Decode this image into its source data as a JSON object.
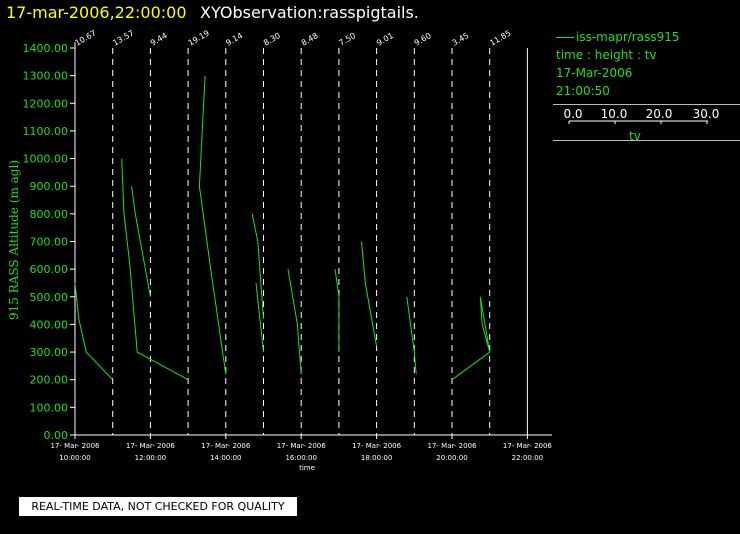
{
  "header": {
    "datetime": "17-mar-2006,22:00:00",
    "observation": "XYObservation:rasspigtails."
  },
  "legend": {
    "series": "iss-mapr/rass915",
    "subtitle": "time : height : tv",
    "date": "17-Mar-2006",
    "time": "21:00:50",
    "scale_ticks": [
      "0.0",
      "10.0",
      "20.0",
      "30.0"
    ],
    "scale_label": "tv"
  },
  "qc_note": "REAL-TIME DATA, NOT CHECKED FOR QUALITY",
  "colors": {
    "series": "#22dd22",
    "title_time": "#ffff00",
    "axis": "#ffffff"
  },
  "chart_data": {
    "type": "line",
    "title": "XYObservation:rasspigtails.",
    "ylabel": "915 RASS Altitude (m agl)",
    "xlabel": "time",
    "ylim": [
      0,
      1400
    ],
    "xlim": [
      9,
      22.25
    ],
    "yticks": [
      "0.00",
      "100.00",
      "200.00",
      "300.00",
      "400.00",
      "500.00",
      "600.00",
      "700.00",
      "800.00",
      "900.00",
      "1000.00",
      "1100.00",
      "1200.00",
      "1300.00",
      "1400.00"
    ],
    "xticks": [
      {
        "x": 10,
        "date": "17- Mar- 2006",
        "time": "10:00:00"
      },
      {
        "x": 12,
        "date": "17- Mar- 2006",
        "time": "12:00:00"
      },
      {
        "x": 14,
        "date": "17- Mar- 2006",
        "time": "14:00:00"
      },
      {
        "x": 16,
        "date": "17- Mar- 2006",
        "time": "16:00:00"
      },
      {
        "x": 18,
        "date": "17- Mar- 2006",
        "time": "18:00:00"
      },
      {
        "x": 20,
        "date": "17- Mar- 2006",
        "time": "20:00:00"
      },
      {
        "x": 22,
        "date": "17- Mar- 2006",
        "time": "22:00:00"
      }
    ],
    "profile_markers": [
      {
        "x": 10.0,
        "label": "10.67"
      },
      {
        "x": 11.0,
        "label": "13.57"
      },
      {
        "x": 12.0,
        "label": "9.44"
      },
      {
        "x": 13.0,
        "label": "19.19"
      },
      {
        "x": 14.0,
        "label": "9.14"
      },
      {
        "x": 15.0,
        "label": "8.30"
      },
      {
        "x": 16.0,
        "label": "8.48"
      },
      {
        "x": 17.0,
        "label": "7.50"
      },
      {
        "x": 18.0,
        "label": "9.01"
      },
      {
        "x": 19.0,
        "label": "9.60"
      },
      {
        "x": 20.0,
        "label": "3.45"
      },
      {
        "x": 21.0,
        "label": "11.85"
      }
    ],
    "grid": "vertical dashed at profile times",
    "series": [
      {
        "name": "iss-mapr/rass915",
        "points": [
          [
            10.0,
            550
          ],
          [
            10.1,
            420
          ],
          [
            10.3,
            300
          ],
          [
            11.0,
            200
          ]
        ]
      },
      {
        "name": "iss-mapr/rass915",
        "points": [
          [
            11.24,
            1000
          ],
          [
            11.3,
            800
          ],
          [
            11.45,
            620
          ],
          [
            11.65,
            300
          ],
          [
            13.0,
            200
          ]
        ]
      },
      {
        "name": "iss-mapr/rass915",
        "points": [
          [
            11.5,
            900
          ],
          [
            11.6,
            800
          ],
          [
            11.8,
            650
          ],
          [
            12.0,
            500
          ]
        ]
      },
      {
        "name": "iss-mapr/rass915",
        "points": [
          [
            13.45,
            1300
          ],
          [
            13.3,
            900
          ],
          [
            13.6,
            600
          ],
          [
            14.0,
            220
          ]
        ]
      },
      {
        "name": "iss-mapr/rass915",
        "points": [
          [
            14.7,
            800
          ],
          [
            14.85,
            700
          ],
          [
            15.0,
            420
          ]
        ]
      },
      {
        "name": "iss-mapr/rass915",
        "points": [
          [
            14.8,
            550
          ],
          [
            15.0,
            300
          ]
        ]
      },
      {
        "name": "iss-mapr/rass915",
        "points": [
          [
            15.65,
            600
          ],
          [
            15.9,
            400
          ],
          [
            16.0,
            220
          ]
        ]
      },
      {
        "name": "iss-mapr/rass915",
        "points": [
          [
            16.9,
            600
          ],
          [
            17.0,
            500
          ],
          [
            17.0,
            300
          ]
        ]
      },
      {
        "name": "iss-mapr/rass915",
        "points": [
          [
            17.6,
            700
          ],
          [
            17.7,
            550
          ],
          [
            18.0,
            320
          ]
        ]
      },
      {
        "name": "iss-mapr/rass915",
        "points": [
          [
            18.8,
            500
          ],
          [
            19.0,
            300
          ],
          [
            19.05,
            220
          ]
        ]
      },
      {
        "name": "iss-mapr/rass915",
        "points": [
          [
            20.0,
            200
          ],
          [
            21.0,
            300
          ],
          [
            20.75,
            500
          ],
          [
            20.8,
            400
          ],
          [
            21.0,
            300
          ]
        ]
      }
    ]
  }
}
